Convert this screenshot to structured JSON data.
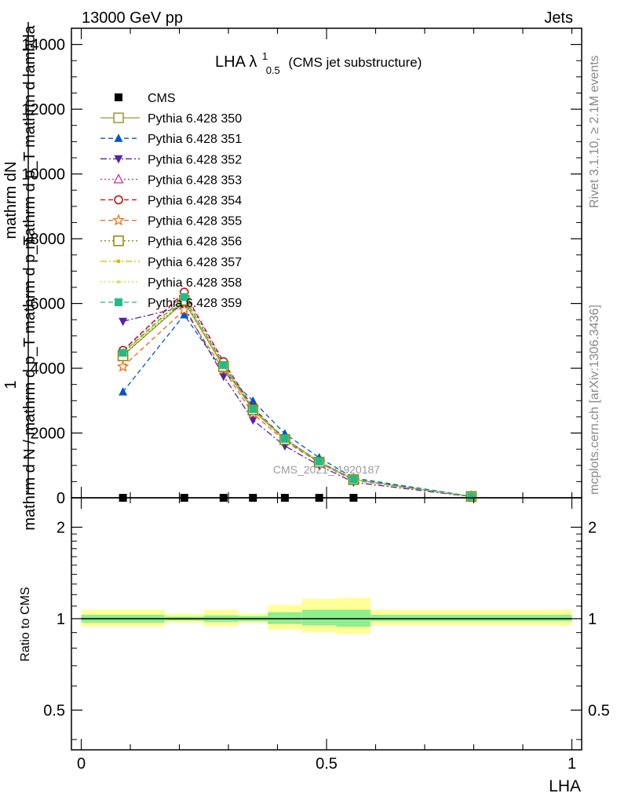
{
  "header": {
    "left": "13000 GeV pp",
    "right": "Jets"
  },
  "side_text": {
    "rivet": "Rivet 3.1.10, ≥ 2.1M events",
    "mcplots": "mcplots.cern.ch [arXiv:1306.3436]"
  },
  "watermark": "CMS_2021_I1920187",
  "plot_title": {
    "main": "LHA λ",
    "sup": "1",
    "sub": "0.5",
    "suffix": "(CMS jet substructure)"
  },
  "y_label_main": {
    "prefix": "1",
    "frac_top_lines": [
      "mathrm dN",
      "mathrm d p_T mathrm d lambda"
    ],
    "frac_bottom_lines": [
      "mathrm d N / mathrm d p_T mathrm d p_T"
    ]
  },
  "x_label": "LHA",
  "ratio_label": "Ratio to CMS",
  "colors": {
    "data": "#000000",
    "band_inner": "#90ee90",
    "band_outer": "#ffff99"
  },
  "chart_data": [
    {
      "type": "line",
      "panel": "main",
      "xlim": [
        -0.02,
        1.02
      ],
      "ylim": [
        0,
        14500
      ],
      "y_ticks": [
        0,
        2000,
        4000,
        6000,
        8000,
        10000,
        12000,
        14000
      ],
      "y_tick_labels": [
        "0",
        "2000",
        "4000",
        "6000",
        "8000",
        "10000",
        "12000",
        "14000"
      ],
      "x": [
        0.085,
        0.21,
        0.29,
        0.35,
        0.415,
        0.485,
        0.555,
        0.795
      ],
      "series": [
        {
          "name": "CMS",
          "color": "#000000",
          "marker": "square-filled",
          "dash": "none",
          "values": [
            0,
            0,
            0,
            0,
            0,
            0,
            0,
            null
          ],
          "show_line": false
        },
        {
          "name": "Pythia 6.428 350",
          "color": "#999933",
          "marker": "square-open",
          "dash": "solid",
          "values": [
            4400,
            6050,
            4050,
            2700,
            1800,
            1100,
            560,
            40
          ]
        },
        {
          "name": "Pythia 6.428 351",
          "color": "#0055cc",
          "marker": "triangle-up-filled",
          "dash": "dash",
          "values": [
            3270,
            5650,
            3900,
            2990,
            1980,
            1240,
            610,
            45
          ]
        },
        {
          "name": "Pythia 6.428 352",
          "color": "#5522aa",
          "marker": "triangle-down-filled",
          "dash": "dashdot",
          "values": [
            5450,
            5900,
            3750,
            2400,
            1600,
            1000,
            480,
            35
          ]
        },
        {
          "name": "Pythia 6.428 353",
          "color": "#cc3399",
          "marker": "triangle-up-open",
          "dash": "dot",
          "values": [
            4530,
            6300,
            4150,
            2750,
            1800,
            1100,
            560,
            40
          ]
        },
        {
          "name": "Pythia 6.428 354",
          "color": "#cc0000",
          "marker": "circle-open",
          "dash": "dash",
          "values": [
            4550,
            6350,
            4200,
            2780,
            1820,
            1120,
            570,
            40
          ]
        },
        {
          "name": "Pythia 6.428 355",
          "color": "#ee6611",
          "marker": "star-open",
          "dash": "dash",
          "values": [
            4050,
            5800,
            3950,
            2600,
            1750,
            1080,
            540,
            38
          ]
        },
        {
          "name": "Pythia 6.428 356",
          "color": "#888800",
          "marker": "square-open",
          "dash": "dot",
          "values": [
            4380,
            6100,
            4050,
            2720,
            1800,
            1100,
            560,
            40
          ]
        },
        {
          "name": "Pythia 6.428 357",
          "color": "#ddbb00",
          "marker": "small-filled",
          "dash": "dashdot",
          "values": [
            4450,
            6150,
            4080,
            2730,
            1810,
            1110,
            560,
            40
          ]
        },
        {
          "name": "Pythia 6.428 358",
          "color": "#ccdd33",
          "marker": "dot-filled",
          "dash": "dot",
          "values": [
            4460,
            6150,
            4090,
            2740,
            1810,
            1110,
            560,
            40
          ]
        },
        {
          "name": "Pythia 6.428 359",
          "color": "#22bb88",
          "marker": "square-filled",
          "dash": "dash",
          "values": [
            4480,
            6200,
            4100,
            2740,
            1820,
            1120,
            565,
            40
          ]
        }
      ]
    },
    {
      "type": "area",
      "panel": "ratio",
      "xlim": [
        -0.02,
        1.02
      ],
      "ylim": [
        0.37,
        2.5
      ],
      "y_scale": "log",
      "y_ticks": [
        0.5,
        1,
        2
      ],
      "y_tick_labels": [
        "0.5",
        "1",
        "2"
      ],
      "x_ticks": [
        0,
        0.5,
        1
      ],
      "x_tick_labels": [
        "0",
        "0.5",
        "1"
      ],
      "bins": [
        {
          "x0": 0.0,
          "x1": 0.17,
          "inner": [
            0.97,
            1.03
          ],
          "outer": [
            0.94,
            1.07
          ]
        },
        {
          "x0": 0.17,
          "x1": 0.25,
          "inner": [
            0.985,
            1.015
          ],
          "outer": [
            0.97,
            1.04
          ]
        },
        {
          "x0": 0.25,
          "x1": 0.32,
          "inner": [
            0.975,
            1.025
          ],
          "outer": [
            0.945,
            1.07
          ]
        },
        {
          "x0": 0.32,
          "x1": 0.38,
          "inner": [
            0.98,
            1.02
          ],
          "outer": [
            0.97,
            1.04
          ]
        },
        {
          "x0": 0.38,
          "x1": 0.45,
          "inner": [
            0.96,
            1.05
          ],
          "outer": [
            0.92,
            1.11
          ]
        },
        {
          "x0": 0.45,
          "x1": 0.52,
          "inner": [
            0.95,
            1.07
          ],
          "outer": [
            0.9,
            1.16
          ]
        },
        {
          "x0": 0.52,
          "x1": 0.59,
          "inner": [
            0.94,
            1.07
          ],
          "outer": [
            0.89,
            1.17
          ]
        },
        {
          "x0": 0.59,
          "x1": 1.0,
          "inner": [
            0.98,
            1.03
          ],
          "outer": [
            0.95,
            1.07
          ]
        }
      ],
      "reference": 1
    }
  ]
}
